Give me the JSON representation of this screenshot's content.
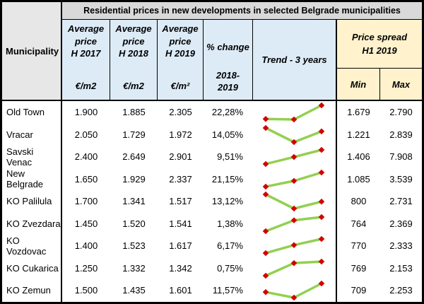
{
  "table": {
    "banner": "Residential prices in new developments in selected Belgrade municipalities",
    "municipality_header": "Municipality",
    "price_columns": [
      {
        "label": "Average price",
        "period": "H 2017",
        "unit": "€/m2"
      },
      {
        "label": "Average price",
        "period": "H 2018",
        "unit": "€/m2"
      },
      {
        "label": "Average price",
        "period": "H 2019",
        "unit": "€/m²"
      }
    ],
    "pct_header": {
      "line1": "% change",
      "line2": "2018-",
      "line3": "2019"
    },
    "trend_header": "Trend - 3 years",
    "spread_header": {
      "line1": "Price spread",
      "line2": "H1 2019"
    },
    "min_header": "Min",
    "max_header": "Max"
  },
  "colors": {
    "banner_bg": "#d9d9d9",
    "municipality_header_bg": "#e8e7e7",
    "blue_header_bg": "#ddebf7",
    "yellow_header_bg": "#fff2cc",
    "border": "#000000",
    "sparkline_line": "#92d050",
    "sparkline_marker": "#d40000"
  },
  "chart_data": {
    "type": "table",
    "columns": [
      "Municipality",
      "Average price H 2017 €/m2",
      "Average price H 2018 €/m2",
      "Average price H 2019 €/m²",
      "% change 2018-2019",
      "Trend - 3 years",
      "Min",
      "Max"
    ],
    "sparkline": {
      "type": "line",
      "x": [
        "H 2017",
        "H 2018",
        "H 2019"
      ],
      "line_color": "#92d050",
      "marker_color": "#d40000"
    },
    "rows": [
      {
        "municipality": "Old Town",
        "h2017": "1.900",
        "h2018": "1.885",
        "h2019": "2.305",
        "pct_change": "22,28%",
        "trend": [
          1900,
          1885,
          2305
        ],
        "min": "1.679",
        "max": "2.790"
      },
      {
        "municipality": "Vracar",
        "h2017": "2.050",
        "h2018": "1.729",
        "h2019": "1.972",
        "pct_change": "14,05%",
        "trend": [
          2050,
          1729,
          1972
        ],
        "min": "1.221",
        "max": "2.839"
      },
      {
        "municipality": "Savski Venac",
        "h2017": "2.400",
        "h2018": "2.649",
        "h2019": "2.901",
        "pct_change": "9,51%",
        "trend": [
          2400,
          2649,
          2901
        ],
        "min": "1.406",
        "max": "7.908"
      },
      {
        "municipality": "New Belgrade",
        "h2017": "1.650",
        "h2018": "1.929",
        "h2019": "2.337",
        "pct_change": "21,15%",
        "trend": [
          1650,
          1929,
          2337
        ],
        "min": "1.085",
        "max": "3.539"
      },
      {
        "municipality": "KO Palilula",
        "h2017": "1.700",
        "h2018": "1.341",
        "h2019": "1.517",
        "pct_change": "13,12%",
        "trend": [
          1700,
          1341,
          1517
        ],
        "min": "800",
        "max": "2.731"
      },
      {
        "municipality": "KO Zvezdara",
        "h2017": "1.450",
        "h2018": "1.520",
        "h2019": "1.541",
        "pct_change": "1,38%",
        "trend": [
          1450,
          1520,
          1541
        ],
        "min": "764",
        "max": "2.369"
      },
      {
        "municipality": "KO Vozdovac",
        "h2017": "1.400",
        "h2018": "1.523",
        "h2019": "1.617",
        "pct_change": "6,17%",
        "trend": [
          1400,
          1523,
          1617
        ],
        "min": "770",
        "max": "2.333"
      },
      {
        "municipality": "KO Cukarica",
        "h2017": "1.250",
        "h2018": "1.332",
        "h2019": "1.342",
        "pct_change": "0,75%",
        "trend": [
          1250,
          1332,
          1342
        ],
        "min": "769",
        "max": "2.153"
      },
      {
        "municipality": "KO Zemun",
        "h2017": "1.500",
        "h2018": "1.435",
        "h2019": "1.601",
        "pct_change": "11,57%",
        "trend": [
          1500,
          1435,
          1601
        ],
        "min": "709",
        "max": "2.253"
      }
    ]
  }
}
